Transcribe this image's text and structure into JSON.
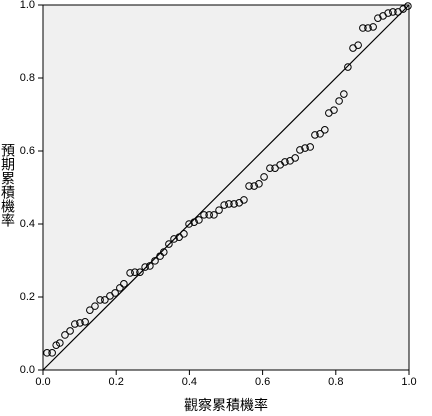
{
  "chart_data": {
    "type": "scatter",
    "x_label": "觀察累積機率",
    "y_label": "預期累積機率",
    "x": [
      0.011,
      0.025,
      0.036,
      0.046,
      0.06,
      0.074,
      0.087,
      0.101,
      0.115,
      0.128,
      0.142,
      0.156,
      0.169,
      0.183,
      0.197,
      0.21,
      0.221,
      0.238,
      0.251,
      0.265,
      0.279,
      0.292,
      0.306,
      0.32,
      0.33,
      0.344,
      0.358,
      0.372,
      0.385,
      0.399,
      0.413,
      0.426,
      0.44,
      0.454,
      0.467,
      0.481,
      0.495,
      0.508,
      0.522,
      0.536,
      0.549,
      0.563,
      0.577,
      0.59,
      0.604,
      0.62,
      0.634,
      0.648,
      0.661,
      0.675,
      0.689,
      0.702,
      0.716,
      0.73,
      0.743,
      0.757,
      0.77,
      0.781,
      0.795,
      0.809,
      0.822,
      0.833,
      0.847,
      0.861,
      0.874,
      0.888,
      0.902,
      0.915,
      0.929,
      0.943,
      0.956,
      0.97,
      0.984,
      0.997
    ],
    "y": [
      0.047,
      0.047,
      0.068,
      0.074,
      0.096,
      0.107,
      0.126,
      0.129,
      0.132,
      0.164,
      0.175,
      0.192,
      0.192,
      0.203,
      0.211,
      0.225,
      0.236,
      0.266,
      0.268,
      0.268,
      0.282,
      0.285,
      0.299,
      0.312,
      0.323,
      0.345,
      0.359,
      0.364,
      0.373,
      0.4,
      0.405,
      0.411,
      0.425,
      0.425,
      0.425,
      0.438,
      0.452,
      0.455,
      0.455,
      0.458,
      0.466,
      0.504,
      0.504,
      0.51,
      0.529,
      0.553,
      0.553,
      0.562,
      0.57,
      0.573,
      0.581,
      0.603,
      0.608,
      0.611,
      0.644,
      0.647,
      0.658,
      0.704,
      0.712,
      0.737,
      0.756,
      0.83,
      0.882,
      0.89,
      0.937,
      0.937,
      0.94,
      0.964,
      0.97,
      0.978,
      0.981,
      0.981,
      0.989,
      0.997
    ],
    "color": "#000000",
    "diagonal": true,
    "xlim": [
      0,
      1
    ],
    "ylim": [
      0,
      1
    ],
    "xticks": [
      {
        "value": 0,
        "label": "0.0"
      },
      0.2,
      0.4,
      0.6,
      0.8,
      {
        "value": 1,
        "label": "1.0"
      }
    ],
    "yticks": [
      {
        "value": 0,
        "label": "0.0"
      },
      0.2,
      0.4,
      0.6,
      0.8,
      {
        "value": 1,
        "label": "1.0"
      }
    ],
    "plot_background": "#f0f0f0"
  }
}
